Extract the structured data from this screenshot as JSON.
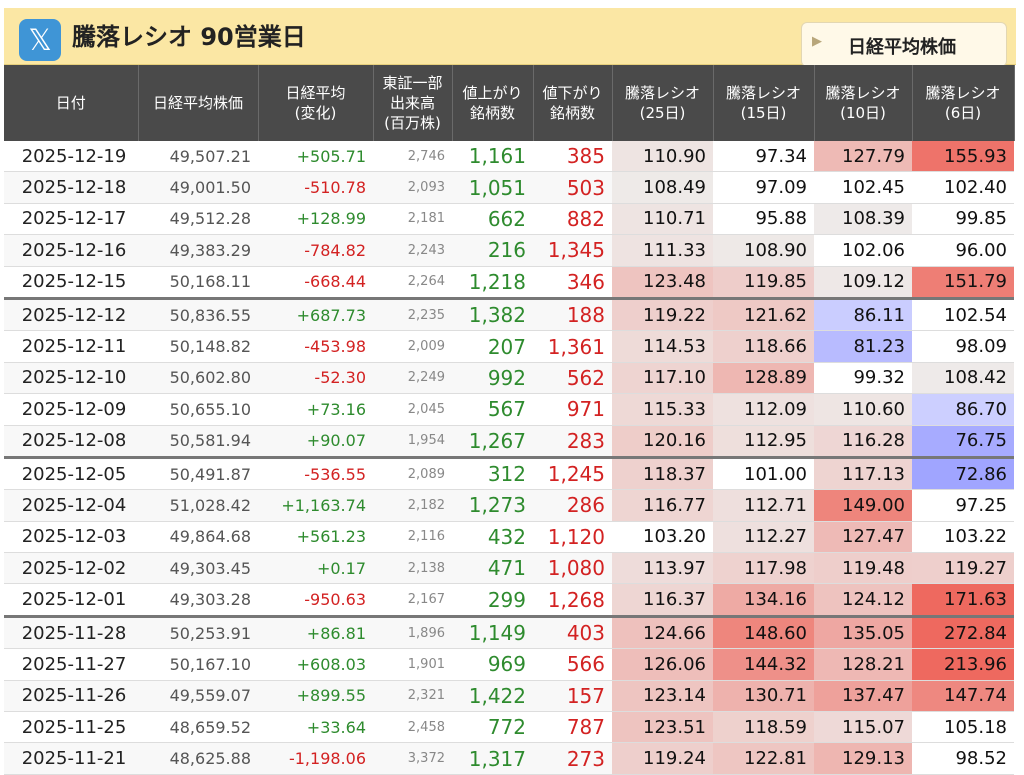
{
  "title": "騰落レシオ 90営業日",
  "logo_glyph": "𝕏",
  "dropdown_label": "日経平均株価",
  "headers": [
    "日付",
    "日経平均株価",
    "日経平均\n(変化)",
    "東証一部\n出来高\n(百万株)",
    "値上がり\n銘柄数",
    "値下がり\n銘柄数",
    "騰落レシオ\n(25日)",
    "騰落レシオ\n(15日)",
    "騰落レシオ\n(10日)",
    "騰落レシオ\n(6日)"
  ],
  "rows": [
    {
      "date": "2025-12-19",
      "price": "49,507.21",
      "chg": "+505.71",
      "vol": "2,746",
      "up": "1,161",
      "dn": "385",
      "r25": "110.90",
      "r15": "97.34",
      "r10": "127.79",
      "r6": "155.93",
      "wk": false
    },
    {
      "date": "2025-12-18",
      "price": "49,001.50",
      "chg": "-510.78",
      "vol": "2,093",
      "up": "1,051",
      "dn": "503",
      "r25": "108.49",
      "r15": "97.09",
      "r10": "102.45",
      "r6": "102.40",
      "wk": false
    },
    {
      "date": "2025-12-17",
      "price": "49,512.28",
      "chg": "+128.99",
      "vol": "2,181",
      "up": "662",
      "dn": "882",
      "r25": "110.71",
      "r15": "95.88",
      "r10": "108.39",
      "r6": "99.85",
      "wk": false
    },
    {
      "date": "2025-12-16",
      "price": "49,383.29",
      "chg": "-784.82",
      "vol": "2,243",
      "up": "216",
      "dn": "1,345",
      "r25": "111.33",
      "r15": "108.90",
      "r10": "102.06",
      "r6": "96.00",
      "wk": false
    },
    {
      "date": "2025-12-15",
      "price": "50,168.11",
      "chg": "-668.44",
      "vol": "2,264",
      "up": "1,218",
      "dn": "346",
      "r25": "123.48",
      "r15": "119.85",
      "r10": "109.12",
      "r6": "151.79",
      "wk": false
    },
    {
      "date": "2025-12-12",
      "price": "50,836.55",
      "chg": "+687.73",
      "vol": "2,235",
      "up": "1,382",
      "dn": "188",
      "r25": "119.22",
      "r15": "121.62",
      "r10": "86.11",
      "r6": "102.54",
      "wk": true
    },
    {
      "date": "2025-12-11",
      "price": "50,148.82",
      "chg": "-453.98",
      "vol": "2,009",
      "up": "207",
      "dn": "1,361",
      "r25": "114.53",
      "r15": "118.66",
      "r10": "81.23",
      "r6": "98.09",
      "wk": false
    },
    {
      "date": "2025-12-10",
      "price": "50,602.80",
      "chg": "-52.30",
      "vol": "2,249",
      "up": "992",
      "dn": "562",
      "r25": "117.10",
      "r15": "128.89",
      "r10": "99.32",
      "r6": "108.42",
      "wk": false
    },
    {
      "date": "2025-12-09",
      "price": "50,655.10",
      "chg": "+73.16",
      "vol": "2,045",
      "up": "567",
      "dn": "971",
      "r25": "115.33",
      "r15": "112.09",
      "r10": "110.60",
      "r6": "86.70",
      "wk": false
    },
    {
      "date": "2025-12-08",
      "price": "50,581.94",
      "chg": "+90.07",
      "vol": "1,954",
      "up": "1,267",
      "dn": "283",
      "r25": "120.16",
      "r15": "112.95",
      "r10": "116.28",
      "r6": "76.75",
      "wk": false
    },
    {
      "date": "2025-12-05",
      "price": "50,491.87",
      "chg": "-536.55",
      "vol": "2,089",
      "up": "312",
      "dn": "1,245",
      "r25": "118.37",
      "r15": "101.00",
      "r10": "117.13",
      "r6": "72.86",
      "wk": true
    },
    {
      "date": "2025-12-04",
      "price": "51,028.42",
      "chg": "+1,163.74",
      "vol": "2,182",
      "up": "1,273",
      "dn": "286",
      "r25": "116.77",
      "r15": "112.71",
      "r10": "149.00",
      "r6": "97.25",
      "wk": false
    },
    {
      "date": "2025-12-03",
      "price": "49,864.68",
      "chg": "+561.23",
      "vol": "2,116",
      "up": "432",
      "dn": "1,120",
      "r25": "103.20",
      "r15": "112.27",
      "r10": "127.47",
      "r6": "103.22",
      "wk": false
    },
    {
      "date": "2025-12-02",
      "price": "49,303.45",
      "chg": "+0.17",
      "vol": "2,138",
      "up": "471",
      "dn": "1,080",
      "r25": "113.97",
      "r15": "117.98",
      "r10": "119.48",
      "r6": "119.27",
      "wk": false
    },
    {
      "date": "2025-12-01",
      "price": "49,303.28",
      "chg": "-950.63",
      "vol": "2,167",
      "up": "299",
      "dn": "1,268",
      "r25": "116.37",
      "r15": "134.16",
      "r10": "124.12",
      "r6": "171.63",
      "wk": false
    },
    {
      "date": "2025-11-28",
      "price": "50,253.91",
      "chg": "+86.81",
      "vol": "1,896",
      "up": "1,149",
      "dn": "403",
      "r25": "124.66",
      "r15": "148.60",
      "r10": "135.05",
      "r6": "272.84",
      "wk": true
    },
    {
      "date": "2025-11-27",
      "price": "50,167.10",
      "chg": "+608.03",
      "vol": "1,901",
      "up": "969",
      "dn": "566",
      "r25": "126.06",
      "r15": "144.32",
      "r10": "128.21",
      "r6": "213.96",
      "wk": false
    },
    {
      "date": "2025-11-26",
      "price": "49,559.07",
      "chg": "+899.55",
      "vol": "2,321",
      "up": "1,422",
      "dn": "157",
      "r25": "123.14",
      "r15": "130.71",
      "r10": "137.47",
      "r6": "147.74",
      "wk": false
    },
    {
      "date": "2025-11-25",
      "price": "48,659.52",
      "chg": "+33.64",
      "vol": "2,458",
      "up": "772",
      "dn": "787",
      "r25": "123.51",
      "r15": "118.59",
      "r10": "115.07",
      "r6": "105.18",
      "wk": false
    },
    {
      "date": "2025-11-21",
      "price": "48,625.88",
      "chg": "-1,198.06",
      "vol": "3,372",
      "up": "1,317",
      "dn": "273",
      "r25": "119.24",
      "r15": "122.81",
      "r10": "129.13",
      "r6": "98.52",
      "wk": false
    }
  ]
}
